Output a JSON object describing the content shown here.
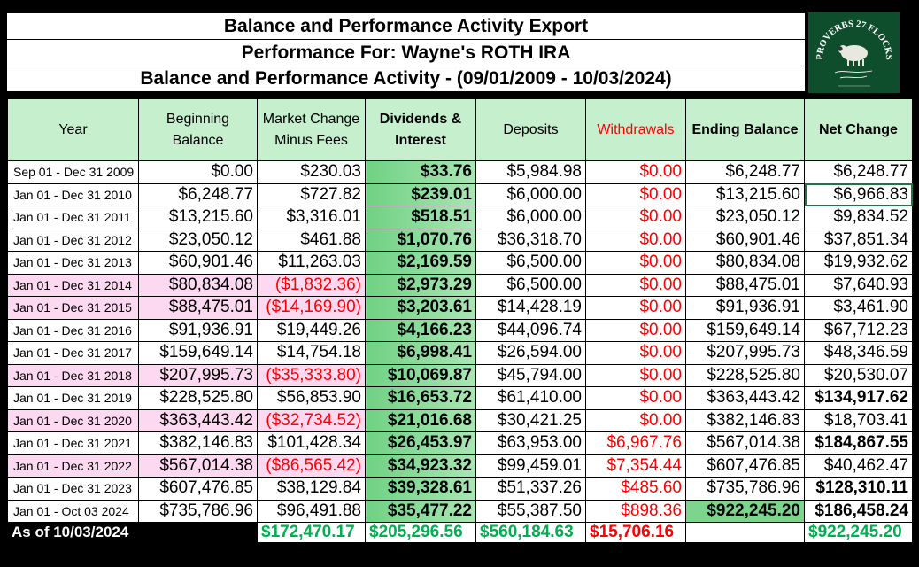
{
  "titles": {
    "line1": "Balance and Performance Activity Export",
    "line2": "Performance For: Wayne's ROTH IRA",
    "line3": "Balance and Performance Activity - (09/01/2009 - 10/03/2024)"
  },
  "logo": {
    "name": "PROVERBS 27 FLOCKS",
    "icon": "sheep-icon",
    "bg_color": "#0f4e2c"
  },
  "headers": {
    "year": "Year",
    "beginning": "Beginning Balance",
    "market": "Market Change Minus Fees",
    "dividends": "Dividends & Interest",
    "deposits": "Deposits",
    "withdrawals": "Withdrawals",
    "ending": "Ending Balance",
    "net": "Net Change"
  },
  "rows": [
    {
      "year": "Sep 01 - Dec 31 2009",
      "beginning": "$0.00",
      "market": "$230.03",
      "dividends": "$33.76",
      "deposits": "$5,984.98",
      "withdrawals": "$0.00",
      "ending": "$6,248.77",
      "net": "$6,248.77",
      "negative": false,
      "net_bold": false
    },
    {
      "year": "Jan 01 - Dec 31 2010",
      "beginning": "$6,248.77",
      "market": "$727.82",
      "dividends": "$239.01",
      "deposits": "$6,000.00",
      "withdrawals": "$0.00",
      "ending": "$13,215.60",
      "net": "$6,966.83",
      "negative": false,
      "net_bold": false
    },
    {
      "year": "Jan 01 - Dec 31 2011",
      "beginning": "$13,215.60",
      "market": "$3,316.01",
      "dividends": "$518.51",
      "deposits": "$6,000.00",
      "withdrawals": "$0.00",
      "ending": "$23,050.12",
      "net": "$9,834.52",
      "negative": false,
      "net_bold": false
    },
    {
      "year": "Jan 01 - Dec 31 2012",
      "beginning": "$23,050.12",
      "market": "$461.88",
      "dividends": "$1,070.76",
      "deposits": "$36,318.70",
      "withdrawals": "$0.00",
      "ending": "$60,901.46",
      "net": "$37,851.34",
      "negative": false,
      "net_bold": false
    },
    {
      "year": "Jan 01 - Dec 31 2013",
      "beginning": "$60,901.46",
      "market": "$11,263.03",
      "dividends": "$2,169.59",
      "deposits": "$6,500.00",
      "withdrawals": "$0.00",
      "ending": "$80,834.08",
      "net": "$19,932.62",
      "negative": false,
      "net_bold": false
    },
    {
      "year": "Jan 01 - Dec 31 2014",
      "beginning": "$80,834.08",
      "market": "($1,832.36)",
      "dividends": "$2,973.29",
      "deposits": "$6,500.00",
      "withdrawals": "$0.00",
      "ending": "$88,475.01",
      "net": "$7,640.93",
      "negative": true,
      "net_bold": false
    },
    {
      "year": "Jan 01 - Dec 31 2015",
      "beginning": "$88,475.01",
      "market": "($14,169.90)",
      "dividends": "$3,203.61",
      "deposits": "$14,428.19",
      "withdrawals": "$0.00",
      "ending": "$91,936.91",
      "net": "$3,461.90",
      "negative": true,
      "net_bold": false
    },
    {
      "year": "Jan 01 - Dec 31 2016",
      "beginning": "$91,936.91",
      "market": "$19,449.26",
      "dividends": "$4,166.23",
      "deposits": "$44,096.74",
      "withdrawals": "$0.00",
      "ending": "$159,649.14",
      "net": "$67,712.23",
      "negative": false,
      "net_bold": false
    },
    {
      "year": "Jan 01 - Dec 31 2017",
      "beginning": "$159,649.14",
      "market": "$14,754.18",
      "dividends": "$6,998.41",
      "deposits": "$26,594.00",
      "withdrawals": "$0.00",
      "ending": "$207,995.73",
      "net": "$48,346.59",
      "negative": false,
      "net_bold": false
    },
    {
      "year": "Jan 01 - Dec 31 2018",
      "beginning": "$207,995.73",
      "market": "($35,333.80)",
      "dividends": "$10,069.87",
      "deposits": "$45,794.00",
      "withdrawals": "$0.00",
      "ending": "$228,525.80",
      "net": "$20,530.07",
      "negative": true,
      "net_bold": false
    },
    {
      "year": "Jan 01 - Dec 31 2019",
      "beginning": "$228,525.80",
      "market": "$56,853.90",
      "dividends": "$16,653.72",
      "deposits": "$61,410.00",
      "withdrawals": "$0.00",
      "ending": "$363,443.42",
      "net": "$134,917.62",
      "negative": false,
      "net_bold": true
    },
    {
      "year": "Jan 01 - Dec 31 2020",
      "beginning": "$363,443.42",
      "market": "($32,734.52)",
      "dividends": "$21,016.68",
      "deposits": "$30,421.25",
      "withdrawals": "$0.00",
      "ending": "$382,146.83",
      "net": "$18,703.41",
      "negative": true,
      "net_bold": false
    },
    {
      "year": "Jan 01 - Dec 31 2021",
      "beginning": "$382,146.83",
      "market": "$101,428.34",
      "dividends": "$26,453.97",
      "deposits": "$63,953.00",
      "withdrawals": "$6,967.76",
      "ending": "$567,014.38",
      "net": "$184,867.55",
      "negative": false,
      "net_bold": true
    },
    {
      "year": "Jan 01 - Dec 31 2022",
      "beginning": "$567,014.38",
      "market": "($86,565.42)",
      "dividends": "$34,923.32",
      "deposits": "$99,459.01",
      "withdrawals": "$7,354.44",
      "ending": "$607,476.85",
      "net": "$40,462.47",
      "negative": true,
      "net_bold": false
    },
    {
      "year": "Jan 01 - Dec 31 2023",
      "beginning": "$607,476.85",
      "market": "$38,129.84",
      "dividends": "$39,328.61",
      "deposits": "$51,337.26",
      "withdrawals": "$485.60",
      "ending": "$735,786.96",
      "net": "$128,310.11",
      "negative": false,
      "net_bold": true
    },
    {
      "year": "Jan 01 - Oct 03 2024",
      "beginning": "$735,786.96",
      "market": "$96,491.88",
      "dividends": "$35,477.22",
      "deposits": "$55,387.50",
      "withdrawals": "$898.36",
      "ending": "$922,245.20",
      "net": "$186,458.24",
      "negative": false,
      "net_bold": true,
      "ending_highlight": true
    }
  ],
  "totals": {
    "label": "As of 10/03/2024",
    "market": "$172,470.17",
    "dividends": "$205,296.56",
    "deposits": "$560,184.63",
    "withdrawals": "$15,706.16",
    "net": "$922,245.20"
  },
  "colors": {
    "header_bg": "#c6efce",
    "negative_row_bg": "#fcd9f0",
    "negative_text": "#ff0000",
    "total_text": "#00b050"
  }
}
